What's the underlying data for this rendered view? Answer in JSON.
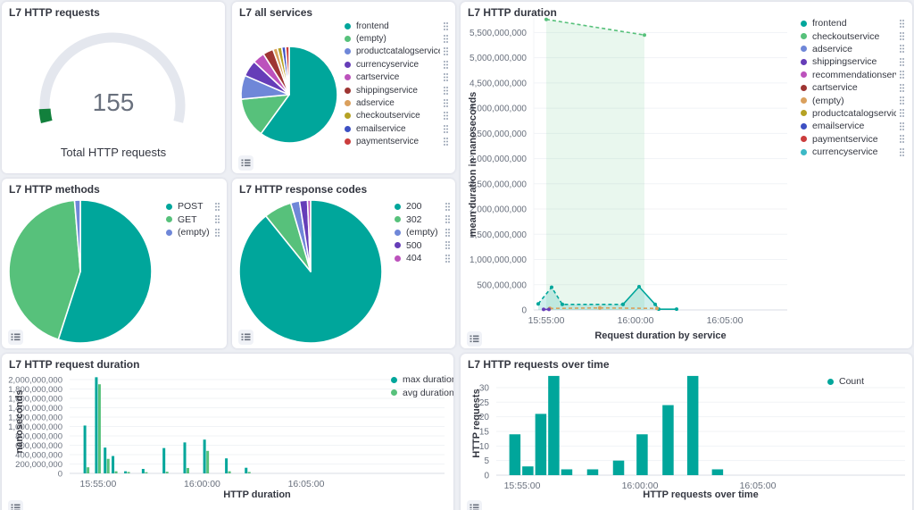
{
  "icons": {
    "legend_toggle": "list-icon",
    "legend_item_actions": "vertical-dots-icon"
  },
  "style": {
    "panel_bg": "#ffffff",
    "page_bg": "#edeff4",
    "title_color": "#343741",
    "tick_color": "#69707d",
    "grid_color": "#f1f3f6",
    "baseline_color": "#d9dde6"
  },
  "panels": {
    "http_requests": {
      "title": "L7 HTTP requests",
      "chart_data": {
        "type": "gauge",
        "value": 155,
        "value_display": "155",
        "label": "Total HTTP requests",
        "arc_color": "#e4e7ee",
        "fill_color": "#12803c",
        "fill_fraction": 0.053
      }
    },
    "all_services": {
      "title": "L7 all services",
      "chart_data": {
        "type": "pie",
        "slices": [
          {
            "label": "frontend",
            "value": 60,
            "color": "#00a69b"
          },
          {
            "label": "(empty)",
            "value": 13.5,
            "color": "#57c17b"
          },
          {
            "label": "productcatalogservice",
            "value": 8,
            "color": "#6f87d8"
          },
          {
            "label": "currencyservice",
            "value": 5.5,
            "color": "#663db8"
          },
          {
            "label": "cartservice",
            "value": 4,
            "color": "#bc52bc"
          },
          {
            "label": "shippingservice",
            "value": 3.5,
            "color": "#9e3533"
          },
          {
            "label": "adservice",
            "value": 1.5,
            "color": "#daa05d"
          },
          {
            "label": "checkoutservice",
            "value": 1.5,
            "color": "#b5a225"
          },
          {
            "label": "emailservice",
            "value": 1.3,
            "color": "#3d50c3"
          },
          {
            "label": "paymentservice",
            "value": 1.2,
            "color": "#cb3d3d"
          }
        ]
      }
    },
    "http_duration": {
      "title": "L7 HTTP duration",
      "chart_data": {
        "type": "line",
        "xlabel": "Request duration by service",
        "ylabel": "mean duration in nanoseconds",
        "x_range": [
          -0.7,
          13.5
        ],
        "y_range": [
          0,
          5790000000
        ],
        "x_ticks": [
          {
            "t": 0,
            "label": "15:55:00"
          },
          {
            "t": 5,
            "label": "16:00:00"
          },
          {
            "t": 10,
            "label": "16:05:00"
          }
        ],
        "y_ticks": [
          0,
          500000000,
          1000000000,
          1500000000,
          2000000000,
          2500000000,
          3000000000,
          3500000000,
          4000000000,
          4500000000,
          5000000000,
          5500000000
        ],
        "legend": [
          {
            "label": "frontend",
            "color": "#00a69b"
          },
          {
            "label": "checkoutservice",
            "color": "#57c17b"
          },
          {
            "label": "adservice",
            "color": "#6f87d8"
          },
          {
            "label": "shippingservice",
            "color": "#663db8"
          },
          {
            "label": "recommendationservice",
            "color": "#bc52bc"
          },
          {
            "label": "cartservice",
            "color": "#9e3533"
          },
          {
            "label": "(empty)",
            "color": "#daa05d"
          },
          {
            "label": "productcatalogservice",
            "color": "#b5a225"
          },
          {
            "label": "emailservice",
            "color": "#3d50c3"
          },
          {
            "label": "paymentservice",
            "color": "#cb3d3d"
          },
          {
            "label": "currencyservice",
            "color": "#3cb9c6"
          }
        ],
        "series": [
          {
            "name": "checkoutservice",
            "color": "#57c17b",
            "dash": true,
            "area": true,
            "area_opacity": 0.13,
            "points": [
              [
                0,
                5760000000
              ],
              [
                5.5,
                5450000000
              ]
            ]
          },
          {
            "name": "frontend",
            "color": "#00a69b",
            "dash": true,
            "area": true,
            "area_opacity": 0.18,
            "points": [
              [
                -0.45,
                120000000
              ],
              [
                0.3,
                450000000
              ],
              [
                0.9,
                110000000
              ],
              [
                4.3,
                110000000
              ]
            ]
          },
          {
            "name": "frontend",
            "color": "#00a69b",
            "dash": false,
            "area": true,
            "area_opacity": 0.18,
            "points": [
              [
                4.3,
                110000000
              ],
              [
                5.2,
                460000000
              ],
              [
                6.1,
                110000000
              ],
              [
                6.3,
                15000000
              ],
              [
                7.3,
                15000000
              ]
            ]
          },
          {
            "name": "(empty)",
            "color": "#daa05d",
            "dash": true,
            "area": false,
            "points": [
              [
                0.2,
                30000000
              ],
              [
                3.0,
                40000000
              ],
              [
                6.2,
                30000000
              ]
            ]
          },
          {
            "name": "shippingservice",
            "color": "#663db8",
            "dash": false,
            "area": false,
            "points": [
              [
                -0.15,
                10000000
              ],
              [
                0.15,
                10000000
              ]
            ]
          }
        ]
      }
    },
    "http_methods": {
      "title": "L7 HTTP methods",
      "chart_data": {
        "type": "pie",
        "slices": [
          {
            "label": "POST",
            "value": 55,
            "color": "#00a69b"
          },
          {
            "label": "GET",
            "value": 43.7,
            "color": "#57c17b"
          },
          {
            "label": "(empty)",
            "value": 1.3,
            "color": "#6f87d8"
          }
        ]
      }
    },
    "response_codes": {
      "title": "L7 HTTP response codes",
      "chart_data": {
        "type": "pie",
        "slices": [
          {
            "label": "200",
            "value": 89.2,
            "color": "#00a69b"
          },
          {
            "label": "302",
            "value": 6.3,
            "color": "#57c17b"
          },
          {
            "label": "(empty)",
            "value": 2.0,
            "color": "#6f87d8"
          },
          {
            "label": "500",
            "value": 1.8,
            "color": "#663db8"
          },
          {
            "label": "404",
            "value": 0.7,
            "color": "#bc52bc"
          }
        ]
      }
    },
    "request_duration": {
      "title": "L7 HTTP request duration",
      "chart_data": {
        "type": "bar",
        "xlabel": "HTTP duration",
        "ylabel": "nanoseconds",
        "x_range": [
          -1.37,
          16.65
        ],
        "y_range": [
          0,
          2133000000
        ],
        "x_ticks": [
          {
            "t": 0,
            "label": "15:55:00"
          },
          {
            "t": 5,
            "label": "16:00:00"
          },
          {
            "t": 10,
            "label": "16:05:00"
          }
        ],
        "y_ticks": [
          0,
          200000000,
          400000000,
          600000000,
          800000000,
          1000000000,
          1200000000,
          1400000000,
          1600000000,
          1800000000,
          2000000000
        ],
        "bar_series": [
          {
            "name": "max duration",
            "color": "#00a69b"
          },
          {
            "name": "avg duration",
            "color": "#57c17b"
          }
        ],
        "bars": [
          [
            -0.55,
            1020000000,
            130000000
          ],
          [
            0.0,
            2050000000,
            1900000000
          ],
          [
            0.42,
            550000000,
            310000000
          ],
          [
            0.8,
            370000000,
            45000000
          ],
          [
            1.4,
            45000000,
            30000000
          ],
          [
            2.25,
            95000000,
            25000000
          ],
          [
            3.25,
            540000000,
            35000000
          ],
          [
            4.25,
            660000000,
            115000000
          ],
          [
            5.2,
            720000000,
            480000000
          ],
          [
            6.25,
            320000000,
            45000000
          ],
          [
            7.2,
            120000000,
            30000000
          ]
        ]
      }
    },
    "requests_over_time": {
      "title": "L7 HTTP requests over time",
      "chart_data": {
        "type": "bar",
        "xlabel": "HTTP requests over time",
        "ylabel": "HTTP requests",
        "x_range": [
          -1.1,
          16.25
        ],
        "y_range": [
          0,
          35.5
        ],
        "x_ticks": [
          {
            "t": 0,
            "label": "15:55:00"
          },
          {
            "t": 5,
            "label": "16:00:00"
          },
          {
            "t": 10,
            "label": "16:05:00"
          }
        ],
        "y_ticks": [
          0,
          5,
          10,
          15,
          20,
          25,
          30
        ],
        "bar_series": [
          {
            "name": "Count",
            "color": "#00a69b"
          }
        ],
        "bars": [
          [
            -0.3,
            14
          ],
          [
            0.25,
            3
          ],
          [
            0.8,
            21
          ],
          [
            1.35,
            34
          ],
          [
            1.9,
            2
          ],
          [
            3.0,
            2
          ],
          [
            4.1,
            5
          ],
          [
            5.1,
            14
          ],
          [
            6.2,
            24
          ],
          [
            7.25,
            34
          ],
          [
            8.3,
            2
          ]
        ]
      }
    }
  }
}
